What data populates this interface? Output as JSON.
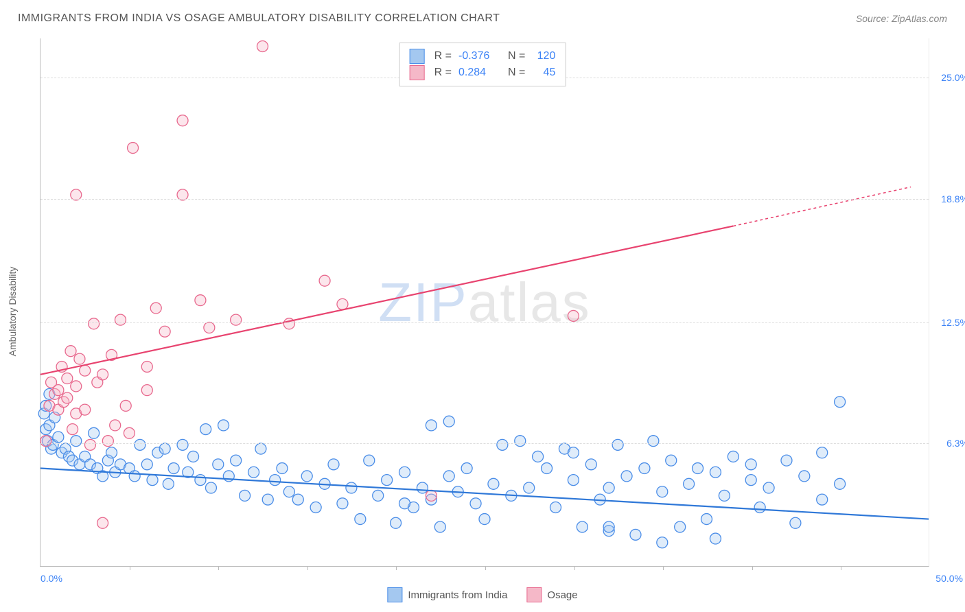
{
  "title": "IMMIGRANTS FROM INDIA VS OSAGE AMBULATORY DISABILITY CORRELATION CHART",
  "source": "Source: ZipAtlas.com",
  "ylabel": "Ambulatory Disability",
  "watermark": {
    "pre": "ZIP",
    "post": "atlas"
  },
  "chart": {
    "type": "scatter",
    "x_range": [
      0,
      50
    ],
    "y_range": [
      0,
      27
    ],
    "y_ticks": [
      {
        "v": 6.3,
        "label": "6.3%",
        "color": "#3b82f6"
      },
      {
        "v": 12.5,
        "label": "12.5%",
        "color": "#3b82f6"
      },
      {
        "v": 18.8,
        "label": "18.8%",
        "color": "#3b82f6"
      },
      {
        "v": 25.0,
        "label": "25.0%",
        "color": "#3b82f6"
      }
    ],
    "x_ticks_minor": [
      5,
      10,
      15,
      20,
      25,
      30,
      35,
      40,
      45
    ],
    "x_tick_left": "0.0%",
    "x_tick_right": "50.0%",
    "grid_color": "#dddddd",
    "background": "#ffffff",
    "marker_radius": 8,
    "marker_fill_opacity": 0.35,
    "marker_stroke_width": 1.3,
    "series": [
      {
        "key": "india",
        "name": "Immigrants from India",
        "color_fill": "#a4c8f0",
        "color_stroke": "#4a8de8",
        "R": "-0.376",
        "N": "120",
        "trend": {
          "x1": 0,
          "y1": 5.0,
          "x2": 50,
          "y2": 2.4,
          "color": "#2f78d8",
          "width": 2.2,
          "dash_after_x": 50
        },
        "points": [
          [
            0.2,
            7.8
          ],
          [
            0.3,
            8.2
          ],
          [
            0.3,
            7.0
          ],
          [
            0.4,
            6.4
          ],
          [
            0.5,
            8.8
          ],
          [
            0.5,
            7.2
          ],
          [
            0.6,
            6.0
          ],
          [
            0.7,
            6.2
          ],
          [
            0.8,
            7.6
          ],
          [
            1.0,
            6.6
          ],
          [
            1.2,
            5.8
          ],
          [
            1.4,
            6.0
          ],
          [
            1.6,
            5.6
          ],
          [
            1.8,
            5.4
          ],
          [
            2.0,
            6.4
          ],
          [
            2.2,
            5.2
          ],
          [
            2.5,
            5.6
          ],
          [
            2.8,
            5.2
          ],
          [
            3.0,
            6.8
          ],
          [
            3.2,
            5.0
          ],
          [
            3.5,
            4.6
          ],
          [
            3.8,
            5.4
          ],
          [
            4.0,
            5.8
          ],
          [
            4.2,
            4.8
          ],
          [
            4.5,
            5.2
          ],
          [
            5.0,
            5.0
          ],
          [
            5.3,
            4.6
          ],
          [
            5.6,
            6.2
          ],
          [
            6.0,
            5.2
          ],
          [
            6.3,
            4.4
          ],
          [
            6.6,
            5.8
          ],
          [
            7.0,
            6.0
          ],
          [
            7.2,
            4.2
          ],
          [
            7.5,
            5.0
          ],
          [
            8.0,
            6.2
          ],
          [
            8.3,
            4.8
          ],
          [
            8.6,
            5.6
          ],
          [
            9.0,
            4.4
          ],
          [
            9.3,
            7.0
          ],
          [
            9.6,
            4.0
          ],
          [
            10.0,
            5.2
          ],
          [
            10.3,
            7.2
          ],
          [
            10.6,
            4.6
          ],
          [
            11.0,
            5.4
          ],
          [
            11.5,
            3.6
          ],
          [
            12.0,
            4.8
          ],
          [
            12.4,
            6.0
          ],
          [
            12.8,
            3.4
          ],
          [
            13.2,
            4.4
          ],
          [
            13.6,
            5.0
          ],
          [
            14.0,
            3.8
          ],
          [
            14.5,
            3.4
          ],
          [
            15.0,
            4.6
          ],
          [
            15.5,
            3.0
          ],
          [
            16.0,
            4.2
          ],
          [
            16.5,
            5.2
          ],
          [
            17.0,
            3.2
          ],
          [
            17.5,
            4.0
          ],
          [
            18.0,
            2.4
          ],
          [
            18.5,
            5.4
          ],
          [
            19.0,
            3.6
          ],
          [
            19.5,
            4.4
          ],
          [
            20.0,
            2.2
          ],
          [
            20.5,
            4.8
          ],
          [
            21.0,
            3.0
          ],
          [
            21.5,
            4.0
          ],
          [
            22.0,
            3.4
          ],
          [
            22.0,
            7.2
          ],
          [
            22.5,
            2.0
          ],
          [
            23.0,
            4.6
          ],
          [
            23.0,
            7.4
          ],
          [
            23.5,
            3.8
          ],
          [
            24.0,
            5.0
          ],
          [
            24.5,
            3.2
          ],
          [
            25.0,
            2.4
          ],
          [
            25.5,
            4.2
          ],
          [
            26.0,
            6.2
          ],
          [
            26.5,
            3.6
          ],
          [
            27.0,
            6.4
          ],
          [
            27.5,
            4.0
          ],
          [
            28.0,
            5.6
          ],
          [
            28.5,
            5.0
          ],
          [
            29.0,
            3.0
          ],
          [
            29.5,
            6.0
          ],
          [
            30.0,
            4.4
          ],
          [
            30.5,
            2.0
          ],
          [
            31.0,
            5.2
          ],
          [
            31.5,
            3.4
          ],
          [
            32.0,
            4.0
          ],
          [
            32.0,
            1.8
          ],
          [
            32.0,
            2.0
          ],
          [
            32.5,
            6.2
          ],
          [
            33.0,
            4.6
          ],
          [
            33.5,
            1.6
          ],
          [
            34.0,
            5.0
          ],
          [
            34.5,
            6.4
          ],
          [
            35.0,
            3.8
          ],
          [
            35.5,
            5.4
          ],
          [
            36.0,
            2.0
          ],
          [
            36.5,
            4.2
          ],
          [
            37.0,
            5.0
          ],
          [
            37.5,
            2.4
          ],
          [
            38.0,
            4.8
          ],
          [
            38.5,
            3.6
          ],
          [
            39.0,
            5.6
          ],
          [
            40.0,
            4.4
          ],
          [
            40.0,
            5.2
          ],
          [
            40.5,
            3.0
          ],
          [
            41.0,
            4.0
          ],
          [
            42.0,
            5.4
          ],
          [
            42.5,
            2.2
          ],
          [
            43.0,
            4.6
          ],
          [
            44.0,
            5.8
          ],
          [
            44.0,
            3.4
          ],
          [
            45.0,
            4.2
          ],
          [
            45.0,
            8.4
          ],
          [
            35.0,
            1.2
          ],
          [
            38.0,
            1.4
          ],
          [
            30.0,
            5.8
          ],
          [
            20.5,
            3.2
          ]
        ]
      },
      {
        "key": "osage",
        "name": "Osage",
        "color_fill": "#f5b8c8",
        "color_stroke": "#e8698e",
        "R": "0.284",
        "N": "45",
        "trend": {
          "x1": 0,
          "y1": 9.8,
          "x2": 39,
          "y2": 17.4,
          "color": "#e8436f",
          "width": 2.2,
          "dash_after_x": 39,
          "dash_x2": 49,
          "dash_y2": 19.4
        },
        "points": [
          [
            0.3,
            6.4
          ],
          [
            0.5,
            8.2
          ],
          [
            0.6,
            9.4
          ],
          [
            0.8,
            8.8
          ],
          [
            1.0,
            9.0
          ],
          [
            1.0,
            8.0
          ],
          [
            1.2,
            10.2
          ],
          [
            1.3,
            8.4
          ],
          [
            1.5,
            9.6
          ],
          [
            1.5,
            8.6
          ],
          [
            1.7,
            11.0
          ],
          [
            1.8,
            7.0
          ],
          [
            2.0,
            9.2
          ],
          [
            2.0,
            7.8
          ],
          [
            2.2,
            10.6
          ],
          [
            2.5,
            8.0
          ],
          [
            2.8,
            6.2
          ],
          [
            3.0,
            12.4
          ],
          [
            3.2,
            9.4
          ],
          [
            3.5,
            9.8
          ],
          [
            3.5,
            2.2
          ],
          [
            3.8,
            6.4
          ],
          [
            4.0,
            10.8
          ],
          [
            4.2,
            7.2
          ],
          [
            2.0,
            19.0
          ],
          [
            4.5,
            12.6
          ],
          [
            5.0,
            6.8
          ],
          [
            5.2,
            21.4
          ],
          [
            6.0,
            10.2
          ],
          [
            6.0,
            9.0
          ],
          [
            6.5,
            13.2
          ],
          [
            7.0,
            12.0
          ],
          [
            8.0,
            22.8
          ],
          [
            8.0,
            19.0
          ],
          [
            9.0,
            13.6
          ],
          [
            9.5,
            12.2
          ],
          [
            11.0,
            12.6
          ],
          [
            12.5,
            26.6
          ],
          [
            14.0,
            12.4
          ],
          [
            16.0,
            14.6
          ],
          [
            17.0,
            13.4
          ],
          [
            22.0,
            3.6
          ],
          [
            30.0,
            12.8
          ],
          [
            4.8,
            8.2
          ],
          [
            2.5,
            10.0
          ]
        ]
      }
    ]
  },
  "legend_top_labels": {
    "R": "R =",
    "N": "N ="
  }
}
